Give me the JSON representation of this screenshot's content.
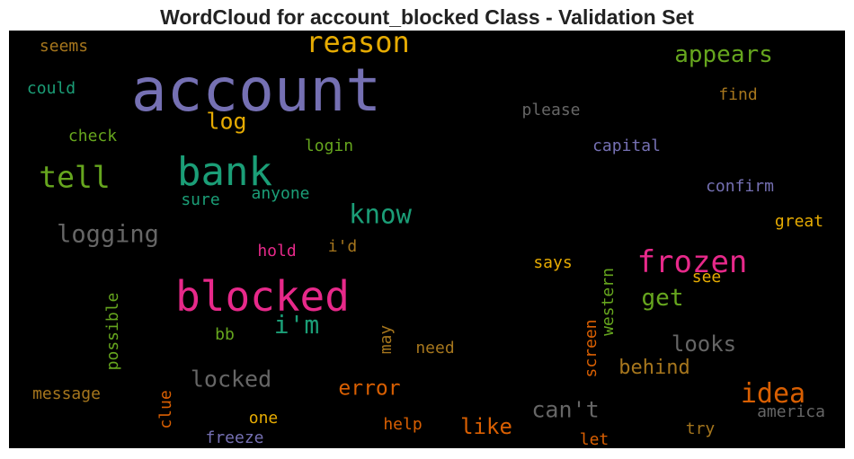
{
  "title": "WordCloud for account_blocked Class - Validation Set",
  "words": [
    {
      "text": "account",
      "color": "#7570b3"
    },
    {
      "text": "blocked",
      "color": "#e7298a"
    },
    {
      "text": "bank",
      "color": "#1b9e77"
    },
    {
      "text": "reason",
      "color": "#e6ab02"
    },
    {
      "text": "frozen",
      "color": "#e7298a"
    },
    {
      "text": "tell",
      "color": "#66a61e"
    },
    {
      "text": "appears",
      "color": "#66a61e"
    },
    {
      "text": "know",
      "color": "#1b9e77"
    },
    {
      "text": "logging",
      "color": "#666666"
    },
    {
      "text": "idea",
      "color": "#d95f02"
    },
    {
      "text": "i'm",
      "color": "#1b9e77"
    },
    {
      "text": "get",
      "color": "#66a61e"
    },
    {
      "text": "log",
      "color": "#e6ab02"
    },
    {
      "text": "locked",
      "color": "#666666"
    },
    {
      "text": "behind",
      "color": "#a6761d"
    },
    {
      "text": "looks",
      "color": "#666666"
    },
    {
      "text": "can't",
      "color": "#666666"
    },
    {
      "text": "error",
      "color": "#d95f02"
    },
    {
      "text": "like",
      "color": "#d95f02"
    },
    {
      "text": "seems",
      "color": "#a6761d"
    },
    {
      "text": "could",
      "color": "#1b9e77"
    },
    {
      "text": "check",
      "color": "#66a61e"
    },
    {
      "text": "please",
      "color": "#666666"
    },
    {
      "text": "find",
      "color": "#a6761d"
    },
    {
      "text": "login",
      "color": "#66a61e"
    },
    {
      "text": "capital",
      "color": "#7570b3"
    },
    {
      "text": "sure",
      "color": "#1b9e77"
    },
    {
      "text": "anyone",
      "color": "#1b9e77"
    },
    {
      "text": "confirm",
      "color": "#7570b3"
    },
    {
      "text": "great",
      "color": "#e6ab02"
    },
    {
      "text": "hold",
      "color": "#e7298a"
    },
    {
      "text": "i'd",
      "color": "#a6761d"
    },
    {
      "text": "says",
      "color": "#e6ab02"
    },
    {
      "text": "see",
      "color": "#e6ab02"
    },
    {
      "text": "bb",
      "color": "#66a61e"
    },
    {
      "text": "need",
      "color": "#a6761d"
    },
    {
      "text": "message",
      "color": "#a6761d"
    },
    {
      "text": "one",
      "color": "#e6ab02"
    },
    {
      "text": "freeze",
      "color": "#7570b3"
    },
    {
      "text": "help",
      "color": "#d95f02"
    },
    {
      "text": "try",
      "color": "#a6761d"
    },
    {
      "text": "america",
      "color": "#666666"
    },
    {
      "text": "let",
      "color": "#d95f02"
    },
    {
      "text": "possible",
      "color": "#66a61e"
    },
    {
      "text": "may",
      "color": "#a6761d"
    },
    {
      "text": "screen",
      "color": "#d95f02"
    },
    {
      "text": "western",
      "color": "#66a61e"
    },
    {
      "text": "clue",
      "color": "#d95f02"
    }
  ]
}
